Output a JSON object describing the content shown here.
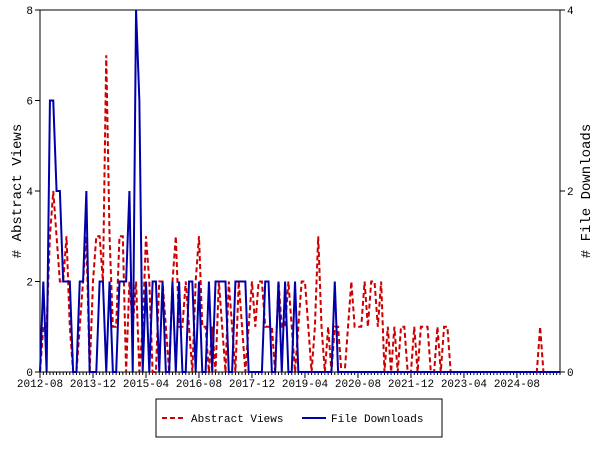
{
  "chart_data": {
    "type": "line",
    "x": [
      "2012-08",
      "2012-09",
      "2012-10",
      "2012-11",
      "2012-12",
      "2013-01",
      "2013-02",
      "2013-03",
      "2013-04",
      "2013-05",
      "2013-06",
      "2013-07",
      "2013-08",
      "2013-09",
      "2013-10",
      "2013-11",
      "2013-12",
      "2014-01",
      "2014-02",
      "2014-03",
      "2014-04",
      "2014-05",
      "2014-06",
      "2014-07",
      "2014-08",
      "2014-09",
      "2014-10",
      "2014-11",
      "2014-12",
      "2015-01",
      "2015-02",
      "2015-03",
      "2015-04",
      "2015-05",
      "2015-06",
      "2015-07",
      "2015-08",
      "2015-09",
      "2015-10",
      "2015-11",
      "2015-12",
      "2016-01",
      "2016-02",
      "2016-03",
      "2016-04",
      "2016-05",
      "2016-06",
      "2016-07",
      "2016-08",
      "2016-09",
      "2016-10",
      "2016-11",
      "2016-12",
      "2017-01",
      "2017-02",
      "2017-03",
      "2017-04",
      "2017-05",
      "2017-06",
      "2017-07",
      "2017-08",
      "2017-09",
      "2017-10",
      "2017-11",
      "2017-12",
      "2018-01",
      "2018-02",
      "2018-03",
      "2018-04",
      "2018-05",
      "2018-06",
      "2018-07",
      "2018-08",
      "2018-09",
      "2018-10",
      "2018-11",
      "2018-12",
      "2019-01",
      "2019-02",
      "2019-03",
      "2019-04",
      "2019-05",
      "2019-06",
      "2019-07",
      "2019-08",
      "2019-09",
      "2019-10",
      "2019-11",
      "2019-12",
      "2020-01",
      "2020-02",
      "2020-03",
      "2020-04",
      "2020-05",
      "2020-06",
      "2020-07",
      "2020-08",
      "2020-09",
      "2020-10",
      "2020-11",
      "2020-12",
      "2021-01",
      "2021-02",
      "2021-03",
      "2021-04",
      "2021-05",
      "2021-06",
      "2021-07",
      "2021-08",
      "2021-09",
      "2021-10",
      "2021-11",
      "2021-12",
      "2022-01",
      "2022-02",
      "2022-03",
      "2022-04",
      "2022-05",
      "2022-06",
      "2022-07",
      "2022-08",
      "2022-09",
      "2022-10",
      "2022-11",
      "2022-12",
      "2023-01",
      "2023-02",
      "2023-03",
      "2023-04",
      "2023-05",
      "2023-06",
      "2023-07",
      "2023-08",
      "2023-09",
      "2023-10",
      "2023-11",
      "2023-12",
      "2024-01",
      "2024-02",
      "2024-03",
      "2024-04",
      "2024-05",
      "2024-06",
      "2024-07",
      "2024-08",
      "2024-09",
      "2024-10",
      "2024-11",
      "2024-12",
      "2025-01",
      "2025-02",
      "2025-03",
      "2025-04",
      "2025-05",
      "2025-06",
      "2025-07",
      "2025-08",
      "2025-09"
    ],
    "xticks": [
      "2012-08",
      "2013-12",
      "2015-04",
      "2016-08",
      "2017-12",
      "2019-04",
      "2020-08",
      "2021-12",
      "2023-04",
      "2024-08"
    ],
    "ylabel": "# Abstract Views",
    "y2label": "# File Downloads",
    "ylim": [
      0,
      8
    ],
    "yticks": [
      0,
      2,
      4,
      6,
      8
    ],
    "y2lim": [
      0,
      4
    ],
    "y2ticks": [
      0,
      2,
      4
    ],
    "series": [
      {
        "name": "Abstract Views",
        "color": "#cc0000",
        "dashed": true,
        "values": [
          0,
          1,
          1,
          3,
          4,
          3,
          2,
          2,
          3,
          1,
          0,
          0,
          1,
          2,
          3,
          0,
          2,
          3,
          3,
          2,
          7,
          3,
          1,
          1,
          3,
          3,
          0,
          2,
          1,
          2,
          0,
          1,
          3,
          2,
          0,
          0,
          2,
          2,
          1,
          0,
          2,
          3,
          1,
          1,
          2,
          1,
          0,
          2,
          3,
          1,
          1,
          0,
          1,
          0,
          2,
          1,
          0,
          2,
          1,
          0,
          2,
          1,
          0,
          1,
          2,
          1,
          2,
          2,
          1,
          1,
          1,
          0,
          2,
          1,
          1,
          2,
          1,
          0,
          1,
          2,
          2,
          1,
          0,
          1,
          3,
          1,
          0,
          1,
          0,
          1,
          1,
          0,
          0,
          1,
          2,
          1,
          1,
          1,
          2,
          1,
          2,
          2,
          1,
          2,
          0,
          1,
          0,
          1,
          0,
          1,
          1,
          0,
          0,
          1,
          0,
          1,
          1,
          1,
          0,
          0,
          1,
          0,
          1,
          1,
          0,
          0,
          0,
          0,
          0,
          0,
          0,
          0,
          0,
          0,
          0,
          0,
          0,
          0,
          0,
          0,
          0,
          0,
          0,
          0,
          0,
          0,
          0,
          0,
          0,
          0,
          0,
          1,
          0,
          0,
          0,
          0,
          0,
          0
        ]
      },
      {
        "name": "File Downloads",
        "color": "#0000aa",
        "axis": "y2",
        "values": [
          0,
          1,
          0,
          3,
          3,
          2,
          2,
          1,
          1,
          1,
          0,
          0,
          1,
          1,
          2,
          0,
          0,
          0,
          1,
          1,
          0,
          1,
          0,
          0,
          1,
          1,
          1,
          2,
          0,
          4,
          3,
          0,
          1,
          0,
          1,
          1,
          0,
          1,
          0,
          0,
          1,
          0,
          1,
          0,
          0,
          1,
          1,
          0,
          1,
          0,
          0,
          1,
          0,
          1,
          1,
          1,
          1,
          0,
          0,
          1,
          1,
          1,
          1,
          0,
          0,
          0,
          0,
          0,
          1,
          1,
          0,
          0,
          1,
          0,
          1,
          0,
          0,
          1,
          0,
          0,
          0,
          0,
          0,
          0,
          0,
          0,
          0,
          0,
          0,
          1,
          0,
          0,
          0,
          0,
          0,
          0,
          0,
          0,
          0,
          0,
          0,
          0,
          0,
          0,
          0,
          0,
          0,
          0,
          0,
          0,
          0,
          0,
          0,
          0,
          0,
          0,
          0,
          0,
          0,
          0,
          0,
          0,
          0,
          0,
          0,
          0,
          0,
          0,
          0,
          0,
          0,
          0,
          0,
          0,
          0,
          0,
          0,
          0,
          0,
          0,
          0,
          0,
          0,
          0,
          0,
          0,
          0,
          0,
          0,
          0,
          0,
          0,
          0,
          0,
          0,
          0,
          0,
          0
        ]
      }
    ]
  }
}
